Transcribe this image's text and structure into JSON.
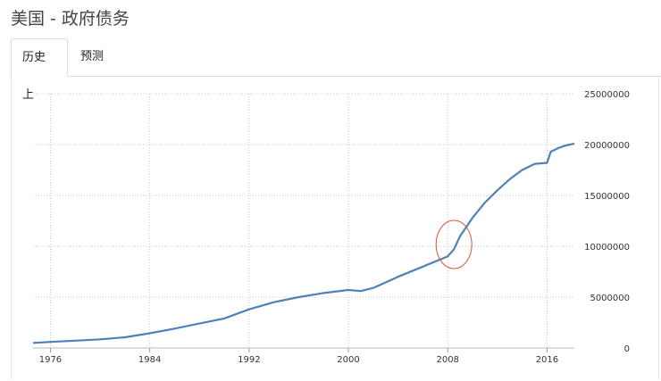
{
  "header": {
    "title": "美国 - 政府债务"
  },
  "tabs": [
    {
      "label": "历史上",
      "active": true
    },
    {
      "label": "预测",
      "active": false
    }
  ],
  "colors": {
    "line": "#4f81b8",
    "grid": "#c8c8c8",
    "highlight": "#e0503c"
  },
  "chart_data": {
    "type": "line",
    "title": "",
    "xlabel": "",
    "ylabel": "",
    "x_ticks": [
      "1976",
      "1984",
      "1992",
      "2000",
      "2008",
      "2016"
    ],
    "y_ticks": [
      "0",
      "5000000",
      "10000000",
      "15000000",
      "20000000",
      "25000000"
    ],
    "xlim": [
      1974.6,
      2018.2
    ],
    "ylim": [
      0,
      25000000
    ],
    "grid": true,
    "y_axis_position": "right",
    "series": [
      {
        "values": [
          [
            1974.6,
            500000
          ],
          [
            1976,
            600000
          ],
          [
            1978,
            720000
          ],
          [
            1980,
            850000
          ],
          [
            1982,
            1050000
          ],
          [
            1984,
            1450000
          ],
          [
            1986,
            1900000
          ],
          [
            1988,
            2400000
          ],
          [
            1990,
            2900000
          ],
          [
            1992,
            3800000
          ],
          [
            1994,
            4500000
          ],
          [
            1996,
            5000000
          ],
          [
            1998,
            5400000
          ],
          [
            2000,
            5700000
          ],
          [
            2001,
            5600000
          ],
          [
            2002,
            5900000
          ],
          [
            2004,
            7000000
          ],
          [
            2006,
            8000000
          ],
          [
            2008,
            9000000
          ],
          [
            2008.5,
            9700000
          ],
          [
            2009,
            11000000
          ],
          [
            2010,
            12800000
          ],
          [
            2011,
            14300000
          ],
          [
            2012,
            15500000
          ],
          [
            2013,
            16600000
          ],
          [
            2014,
            17500000
          ],
          [
            2015,
            18100000
          ],
          [
            2016,
            18200000
          ],
          [
            2016.3,
            19300000
          ],
          [
            2017,
            19700000
          ],
          [
            2017.5,
            19900000
          ],
          [
            2018.2,
            20100000
          ]
        ]
      }
    ],
    "annotations": [
      {
        "type": "ellipse",
        "x": 2008.5,
        "y": 10000000,
        "note": "red circle highlight"
      }
    ]
  }
}
